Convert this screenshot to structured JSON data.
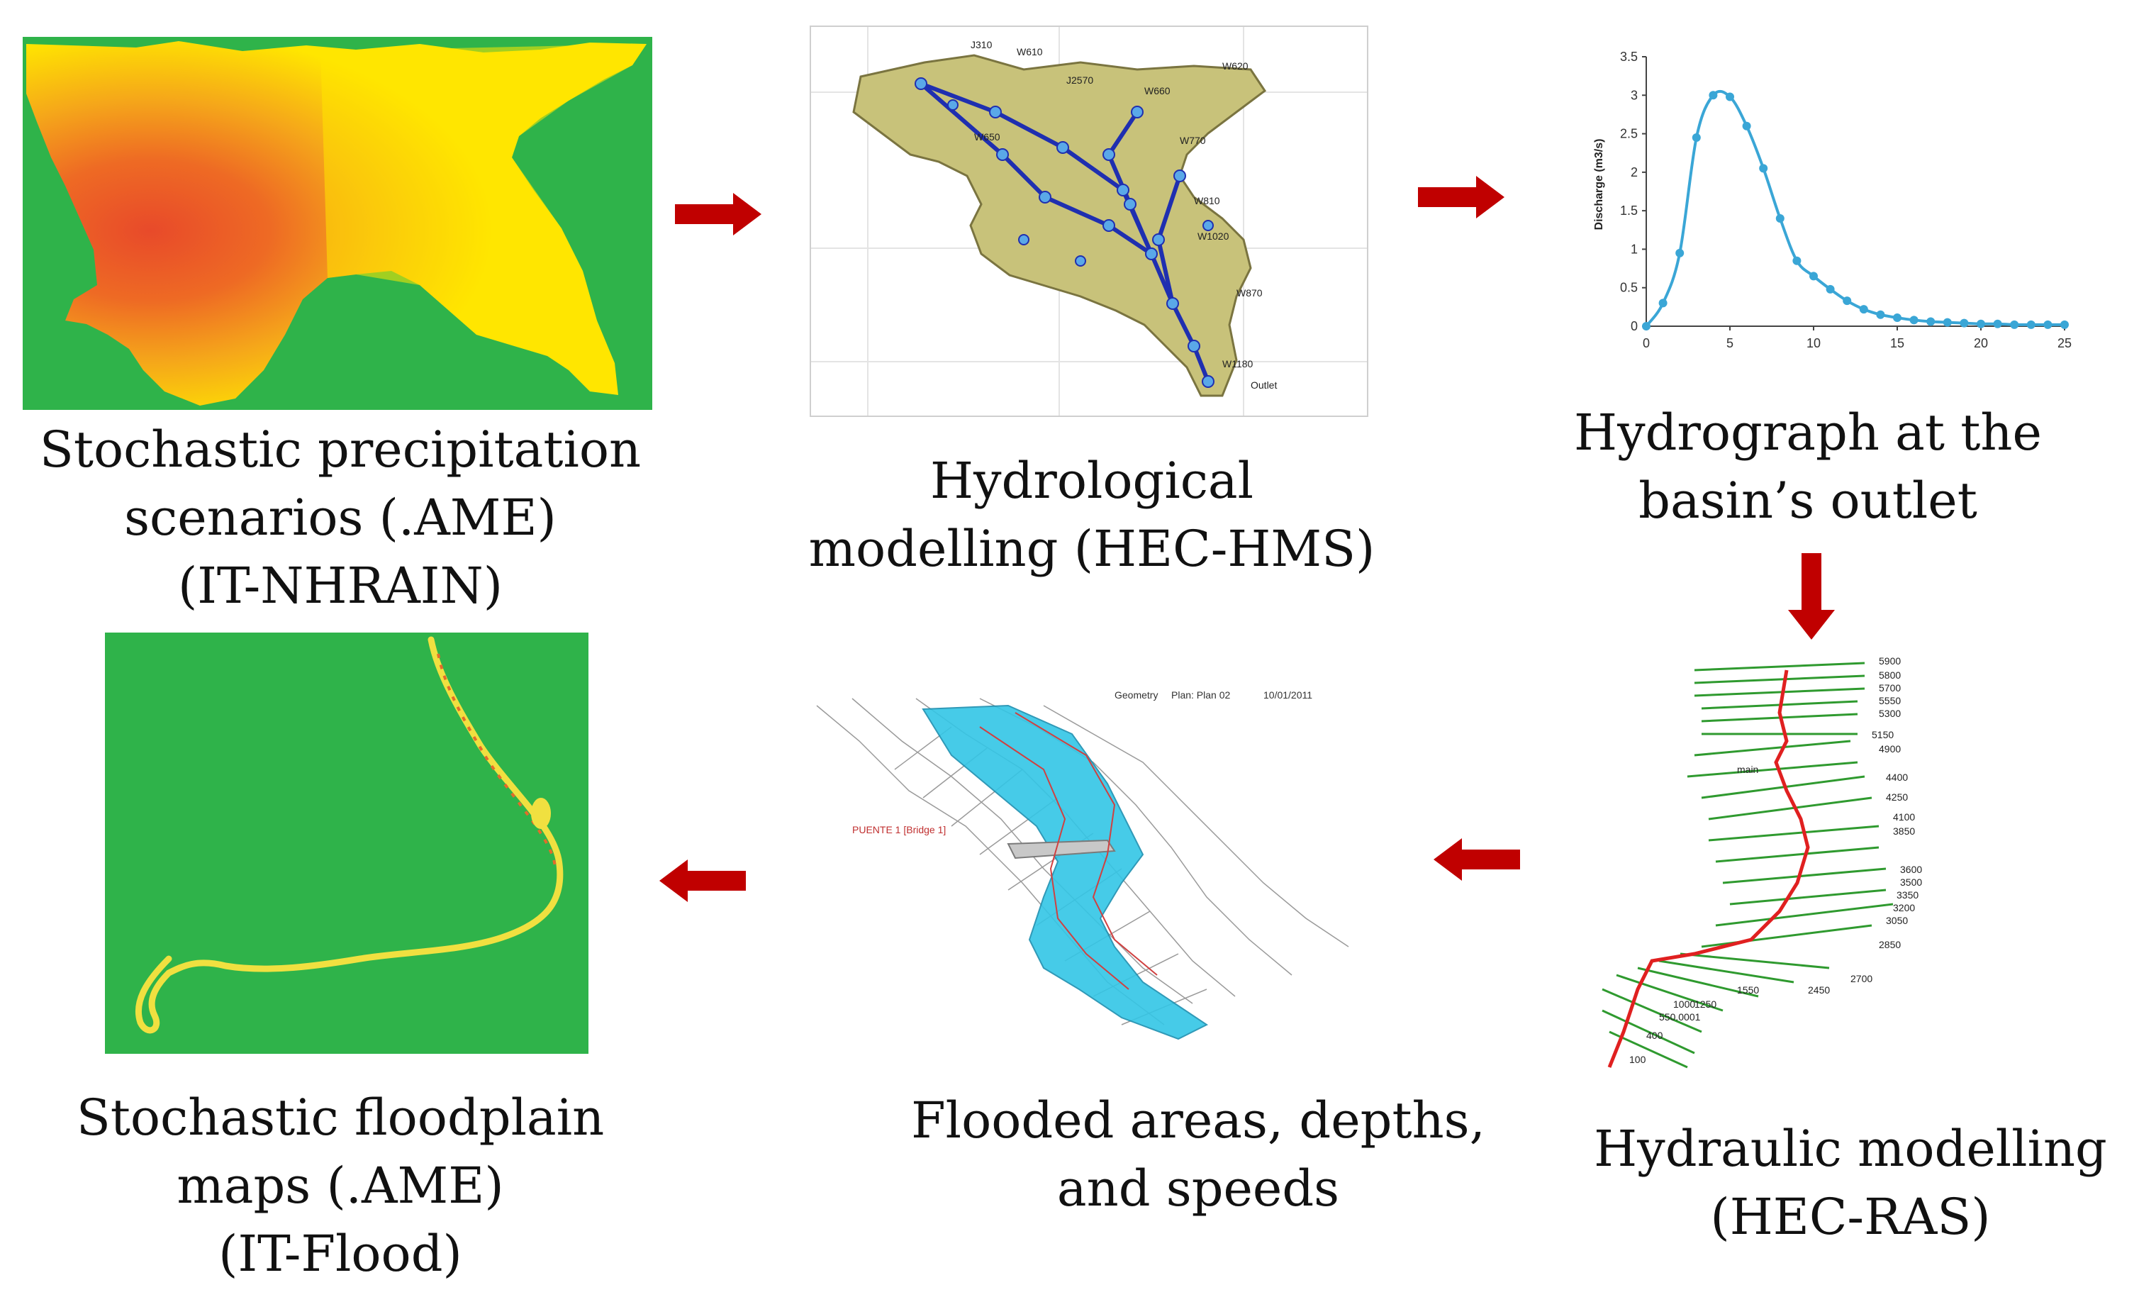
{
  "colors": {
    "arrow": "#c00000",
    "background_green": "#2fb34a",
    "precip_yellow": "#ffe600",
    "precip_orange": "#f08a1e",
    "precip_red": "#e84a2a",
    "basin_fill": "#c8c27a",
    "network_blue": "#1f2fb0",
    "hydrograph_line": "#3aa6d6",
    "flood_cyan": "#33c6e6",
    "reach_green": "#2f9a2f",
    "reach_red": "#e02020"
  },
  "captions": {
    "precip": [
      "Stochastic precipitation",
      "scenarios (.AME)",
      "(IT-NHRAIN)"
    ],
    "hydro": [
      "Hydrological",
      "modelling (HEC-HMS)"
    ],
    "hydrograph": [
      "Hydrograph at the",
      "basin’s outlet"
    ],
    "hydraulic": [
      "Hydraulic modelling",
      "(HEC-RAS)"
    ],
    "flooded": [
      "Flooded areas, depths,",
      "and speeds"
    ],
    "floodplain": [
      "Stochastic floodplain",
      "maps (.AME)",
      "(IT-Flood)"
    ]
  },
  "hms_labels": {
    "nodes": [
      "J310",
      "W610",
      "W650",
      "J2570",
      "W620",
      "W660",
      "W770",
      "W810",
      "W1020",
      "W870",
      "W1180"
    ],
    "outlet": "Outlet"
  },
  "ras_labels": {
    "header": [
      "Geometry",
      "Plan: Plan 02",
      "10/01/2011"
    ],
    "bridge": "PUENTE 1 [Bridge 1]"
  },
  "reach_labels": {
    "stations": [
      "5900",
      "5800",
      "5700",
      "5550",
      "5300",
      "5150",
      "4900",
      "4400",
      "4250",
      "4100",
      "3850",
      "3600",
      "3500",
      "3350",
      "3200",
      "3050",
      "2850",
      "2700",
      "2450",
      "1550",
      "1250",
      "1000",
      "550.0001",
      "400",
      "100"
    ],
    "reach_name": "main"
  },
  "chart_data": {
    "type": "line",
    "title": "",
    "xlabel": "",
    "ylabel": "Discharge (m3/s)",
    "xlim": [
      0,
      25
    ],
    "ylim": [
      0,
      3.5
    ],
    "xticks": [
      "0",
      "5",
      "10",
      "15",
      "20",
      "25"
    ],
    "yticks": [
      "0",
      "0.5",
      "1",
      "1.5",
      "2",
      "2.5",
      "3",
      "3.5"
    ],
    "grid": false,
    "series": [
      {
        "name": "",
        "x": [
          0,
          1,
          2,
          3,
          4,
          5,
          6,
          7,
          8,
          9,
          10,
          11,
          12,
          13,
          14,
          15,
          16,
          17,
          18,
          19,
          20,
          21,
          22,
          23,
          24,
          25
        ],
        "y": [
          0.0,
          0.3,
          0.95,
          2.45,
          3.0,
          2.98,
          2.6,
          2.05,
          1.4,
          0.85,
          0.65,
          0.48,
          0.33,
          0.22,
          0.15,
          0.11,
          0.08,
          0.06,
          0.05,
          0.04,
          0.03,
          0.03,
          0.02,
          0.02,
          0.02,
          0.02
        ]
      }
    ]
  }
}
